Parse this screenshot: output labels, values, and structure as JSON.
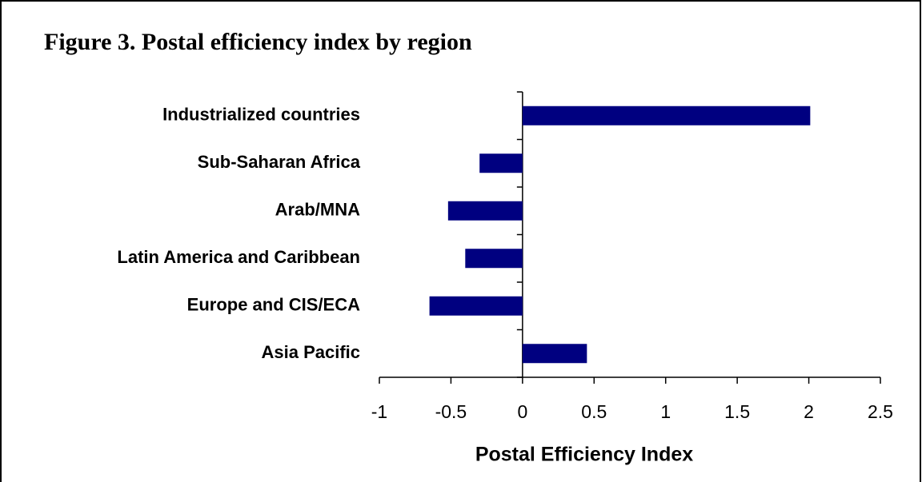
{
  "chart_data": {
    "type": "hbar",
    "title": "Figure 3. Postal efficiency index by region",
    "x_label": "Postal Efficiency Index",
    "categories": [
      "Industrialized countries",
      "Sub-Saharan Africa",
      "Arab/MNA",
      "Latin America and Caribbean",
      "Europe and CIS/ECA",
      "Asia Pacific"
    ],
    "values": [
      2.01,
      -0.3,
      -0.52,
      -0.4,
      -0.65,
      0.45
    ],
    "color": "#000080",
    "xlim": [
      -1,
      2.5
    ],
    "xticks": [
      -1,
      -0.5,
      0,
      0.5,
      1,
      1.5,
      2,
      2.5
    ]
  }
}
